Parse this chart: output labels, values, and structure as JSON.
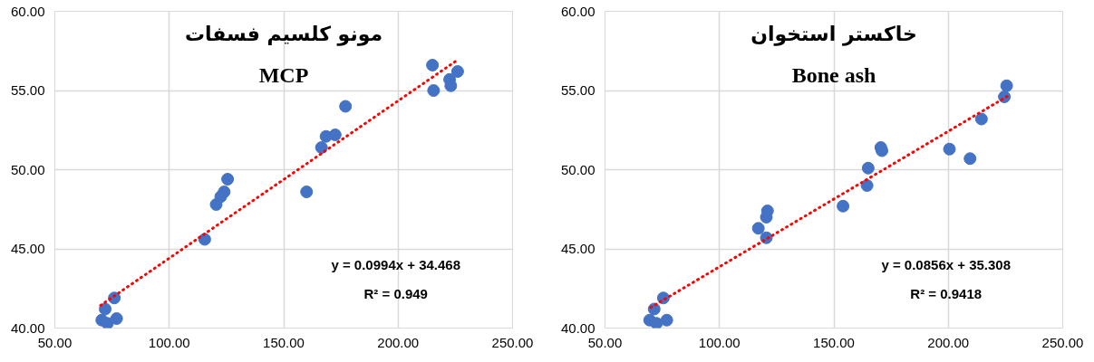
{
  "chart_data": [
    {
      "type": "scatter",
      "title": "مونو کلسیم فسفات",
      "subtitle": "MCP",
      "marker": "circle",
      "grid": true,
      "xlim": [
        50,
        250
      ],
      "ylim": [
        40,
        60
      ],
      "xticks": [
        {
          "value": 50,
          "label": "50.00"
        },
        {
          "value": 100,
          "label": "100.00"
        },
        {
          "value": 150,
          "label": "150.00"
        },
        {
          "value": 200,
          "label": "200.00"
        },
        {
          "value": 250,
          "label": "250.00"
        }
      ],
      "yticks": [
        {
          "value": 40,
          "label": "40.00"
        },
        {
          "value": 45,
          "label": "45.00"
        },
        {
          "value": 50,
          "label": "50.00"
        },
        {
          "value": 55,
          "label": "55.00"
        },
        {
          "value": 60,
          "label": "60.00"
        }
      ],
      "annotations": [
        "y = 0.0994x + 34.468",
        "R² = 0.949"
      ],
      "series": [
        {
          "color": "#4472c4",
          "x": [
            70.5,
            72,
            73,
            76,
            77,
            115.5,
            120.5,
            122.5,
            124,
            125.5,
            160,
            166.5,
            168.5,
            172.5,
            177,
            215,
            215.5,
            222.5,
            223,
            226
          ],
          "values": [
            40.5,
            41.2,
            40.3,
            41.9,
            40.6,
            45.6,
            47.8,
            48.3,
            48.6,
            49.4,
            48.6,
            51.4,
            52.1,
            52.2,
            54.0,
            56.6,
            55.0,
            55.7,
            55.3,
            56.2
          ]
        },
        {
          "type": "line",
          "color": "#ff0000",
          "line_style": "dotted",
          "marker": "none",
          "x": [
            70,
            226
          ],
          "values": [
            41.43,
            56.93
          ]
        }
      ]
    },
    {
      "type": "scatter",
      "title": "خاکستر استخوان",
      "subtitle": "Bone ash",
      "marker": "circle",
      "grid": true,
      "xlim": [
        50,
        250
      ],
      "ylim": [
        40,
        60
      ],
      "xticks": [
        {
          "value": 50,
          "label": "50.00"
        },
        {
          "value": 100,
          "label": "100.00"
        },
        {
          "value": 150,
          "label": "150.00"
        },
        {
          "value": 200,
          "label": "200.00"
        },
        {
          "value": 250,
          "label": "250.00"
        }
      ],
      "yticks": [
        {
          "value": 40,
          "label": "40.00"
        },
        {
          "value": 45,
          "label": "45.00"
        },
        {
          "value": 50,
          "label": "50.00"
        },
        {
          "value": 55,
          "label": "55.00"
        },
        {
          "value": 60,
          "label": "60.00"
        }
      ],
      "annotations": [
        "y = 0.0856x + 35.308",
        "R² = 0.9418"
      ],
      "series": [
        {
          "color": "#4472c4",
          "x": [
            69.5,
            71.5,
            72.5,
            75.5,
            77,
            117,
            120.5,
            121,
            120.5,
            154,
            164.5,
            165,
            170.5,
            171,
            200.5,
            209.5,
            214.5,
            224.5,
            225.5
          ],
          "values": [
            40.5,
            41.2,
            40.3,
            41.9,
            40.5,
            46.3,
            47.0,
            47.4,
            45.7,
            47.7,
            49.0,
            50.1,
            51.4,
            51.2,
            51.3,
            50.7,
            53.2,
            54.6,
            55.3
          ]
        },
        {
          "type": "line",
          "color": "#ff0000",
          "line_style": "dotted",
          "marker": "none",
          "x": [
            70,
            226
          ],
          "values": [
            41.3,
            54.65
          ]
        }
      ]
    }
  ]
}
